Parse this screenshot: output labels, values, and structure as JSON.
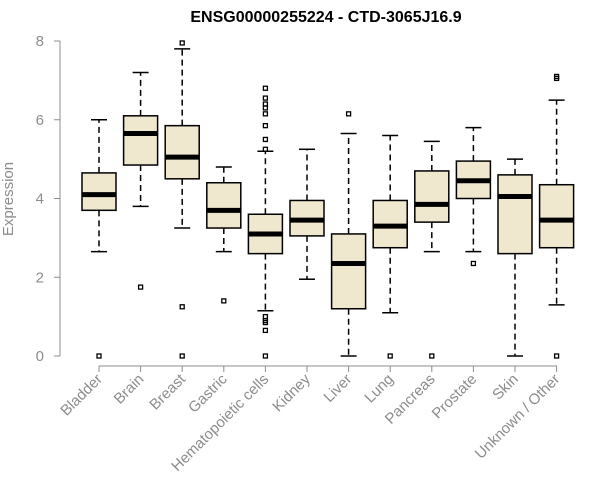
{
  "chart_data": {
    "type": "boxplot",
    "title": "ENSG00000255224 - CTD-3065J16.9",
    "xlabel": "",
    "ylabel": "Expression",
    "ylim": [
      0,
      8
    ],
    "yticks": [
      0,
      2,
      4,
      6,
      8
    ],
    "box_fill": "#efe8cf",
    "categories": [
      "Bladder",
      "Brain",
      "Breast",
      "Gastric",
      "Hematopoietic cells",
      "Kidney",
      "Liver",
      "Lung",
      "Pancreas",
      "Prostate",
      "Skin",
      "Unknown / Other"
    ],
    "boxes": [
      {
        "name": "Bladder",
        "q1": 3.7,
        "median": 4.1,
        "q3": 4.65,
        "whisker_low": 2.65,
        "whisker_high": 6.0,
        "outliers": [
          0.0
        ]
      },
      {
        "name": "Brain",
        "q1": 4.85,
        "median": 5.65,
        "q3": 6.1,
        "whisker_low": 3.8,
        "whisker_high": 7.2,
        "outliers": [
          1.75
        ]
      },
      {
        "name": "Breast",
        "q1": 4.5,
        "median": 5.05,
        "q3": 5.85,
        "whisker_low": 3.25,
        "whisker_high": 7.8,
        "outliers": [
          7.95,
          1.25,
          0.0
        ]
      },
      {
        "name": "Gastric",
        "q1": 3.25,
        "median": 3.7,
        "q3": 4.4,
        "whisker_low": 2.65,
        "whisker_high": 4.8,
        "outliers": [
          1.4
        ]
      },
      {
        "name": "Hematopoietic cells",
        "q1": 2.6,
        "median": 3.1,
        "q3": 3.6,
        "whisker_low": 1.15,
        "whisker_high": 5.2,
        "outliers": [
          6.8,
          6.55,
          6.4,
          6.3,
          6.15,
          5.85,
          5.5,
          5.25,
          1.0,
          0.9,
          0.85,
          0.65,
          0.0
        ]
      },
      {
        "name": "Kidney",
        "q1": 3.05,
        "median": 3.45,
        "q3": 3.95,
        "whisker_low": 1.95,
        "whisker_high": 5.25,
        "outliers": []
      },
      {
        "name": "Liver",
        "q1": 1.2,
        "median": 2.35,
        "q3": 3.1,
        "whisker_low": 0.0,
        "whisker_high": 5.65,
        "outliers": [
          6.15
        ]
      },
      {
        "name": "Lung",
        "q1": 2.75,
        "median": 3.3,
        "q3": 3.95,
        "whisker_low": 1.1,
        "whisker_high": 5.6,
        "outliers": [
          0.0
        ]
      },
      {
        "name": "Pancreas",
        "q1": 3.4,
        "median": 3.85,
        "q3": 4.7,
        "whisker_low": 2.65,
        "whisker_high": 5.45,
        "outliers": [
          0.0
        ]
      },
      {
        "name": "Prostate",
        "q1": 4.0,
        "median": 4.45,
        "q3": 4.95,
        "whisker_low": 2.65,
        "whisker_high": 5.8,
        "outliers": [
          2.35
        ]
      },
      {
        "name": "Skin",
        "q1": 2.6,
        "median": 4.05,
        "q3": 4.6,
        "whisker_low": 0.0,
        "whisker_high": 5.0,
        "outliers": []
      },
      {
        "name": "Unknown / Other",
        "q1": 2.75,
        "median": 3.45,
        "q3": 4.35,
        "whisker_low": 1.3,
        "whisker_high": 6.5,
        "outliers": [
          7.1,
          7.05,
          0.0
        ]
      }
    ]
  }
}
